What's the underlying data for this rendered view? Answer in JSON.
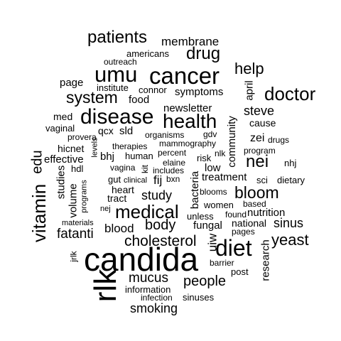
{
  "wordcloud": {
    "words": [
      "candida",
      "rlk",
      "cancer",
      "umu",
      "diet",
      "disease",
      "health",
      "medical",
      "doctor",
      "patients",
      "drug",
      "system",
      "vitamin",
      "cholesterol",
      "nei",
      "bloom",
      "help",
      "membrane",
      "yeast",
      "fatanti",
      "body",
      "people",
      "mucus",
      "smoking",
      "study",
      "steve",
      "sinus",
      "edu",
      "blood",
      "community",
      "newsletter",
      "symptoms",
      "food",
      "page",
      "americans",
      "outreach",
      "institute",
      "connor",
      "april",
      "med",
      "vaginal",
      "provera",
      "qcx",
      "sld",
      "organisms",
      "gdv",
      "mammography",
      "therapies",
      "percent",
      "zei",
      "drugs",
      "program",
      "hicnet",
      "effective",
      "levels",
      "bhj",
      "human",
      "elaine",
      "kit",
      "risk",
      "nlk",
      "nhj",
      "hdl",
      "vagina",
      "includes",
      "low",
      "gut",
      "clinical",
      "bxn",
      "fij",
      "treatment",
      "sci",
      "dietary",
      "studies",
      "heart",
      "bacteria",
      "tract",
      "volume",
      "programs",
      "blooms",
      "women",
      "based",
      "nej",
      "unless",
      "found",
      "nutrition",
      "materials",
      "fungal",
      "national",
      "pages",
      "jrlk",
      "uiw",
      "research",
      "barrier",
      "post",
      "information",
      "infection",
      "sinuses",
      "cause"
    ]
  }
}
